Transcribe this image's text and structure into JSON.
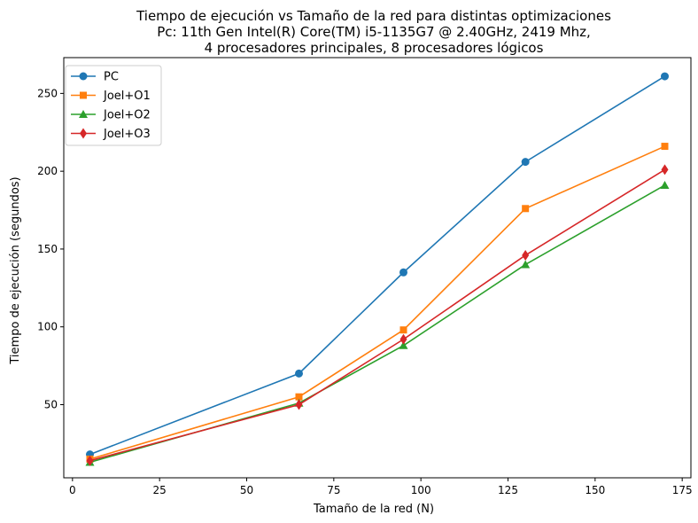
{
  "chart_data": {
    "type": "line",
    "title_lines": [
      "Tiempo de ejecución vs Tamaño de la red para distintas optimizaciones",
      "Pc: 11th Gen Intel(R) Core(TM) i5-1135G7 @ 2.40GHz, 2419 Mhz,",
      "4 procesadores principales, 8 procesadores lógicos"
    ],
    "xlabel": "Tamaño de la red (N)",
    "ylabel": "Tiempo de ejecución (segundos)",
    "xlim": [
      -2.5,
      177.5
    ],
    "ylim": [
      3,
      273
    ],
    "xticks": [
      0,
      25,
      50,
      75,
      100,
      125,
      150,
      175
    ],
    "yticks": [
      50,
      100,
      150,
      200,
      250
    ],
    "grid": false,
    "legend_position": "upper-left",
    "x": [
      5,
      65,
      95,
      130,
      170
    ],
    "series": [
      {
        "name": "PC",
        "values": [
          18,
          70,
          135,
          206,
          261
        ],
        "color": "#1f77b4",
        "marker": "circle"
      },
      {
        "name": "Joel+O1",
        "values": [
          15,
          55,
          98,
          176,
          216
        ],
        "color": "#ff7f0e",
        "marker": "square"
      },
      {
        "name": "Joel+O2",
        "values": [
          13,
          51,
          88,
          140,
          191
        ],
        "color": "#2ca02c",
        "marker": "triangle-up"
      },
      {
        "name": "Joel+O3",
        "values": [
          14,
          50,
          92,
          146,
          201
        ],
        "color": "#d62728",
        "marker": "diamond"
      }
    ]
  }
}
